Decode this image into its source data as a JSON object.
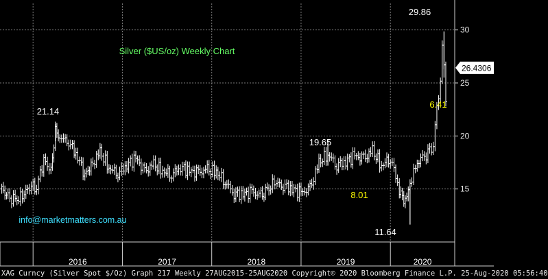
{
  "chart_data": {
    "type": "ohlc",
    "title": "Silver ($US/oz) Weekly Chart",
    "ylim": [
      10,
      32.5
    ],
    "yticks": [
      15,
      20,
      25,
      30
    ],
    "xticks": [
      "2016",
      "2017",
      "2018",
      "2019",
      "2020"
    ],
    "grid": true,
    "last_price": "26.4306",
    "annotations": [
      {
        "text": "21.14",
        "x": 2016.25,
        "y": 21.14,
        "color": "#ffffff"
      },
      {
        "text": "19.65",
        "x": 2019.3,
        "y": 19.65,
        "color": "#ffffff"
      },
      {
        "text": "8.01",
        "x": 2019.6,
        "y": 15.7,
        "color": "#ffff00"
      },
      {
        "text": "11.64",
        "x": 2020.22,
        "y": 11.64,
        "color": "#ffffff"
      },
      {
        "text": "29.86",
        "x": 2020.6,
        "y": 29.86,
        "color": "#ffffff"
      },
      {
        "text": "6.41",
        "x": 2020.62,
        "y": 23.1,
        "color": "#ffff00"
      }
    ],
    "watermark": "info@marketmatters.com.au",
    "series": [
      {
        "x": [
          2015.65,
          2015.72,
          2015.8,
          2015.88,
          2015.96,
          2016.04,
          2016.12,
          2016.2,
          2016.25,
          2016.3,
          2016.4,
          2016.5,
          2016.58,
          2016.65,
          2016.75,
          2016.85,
          2016.95,
          2017.05,
          2017.15,
          2017.25,
          2017.35,
          2017.45,
          2017.55,
          2017.65,
          2017.75,
          2017.85,
          2017.95,
          2018.05,
          2018.15,
          2018.25,
          2018.35,
          2018.45,
          2018.55,
          2018.62,
          2018.7,
          2018.8,
          2018.9,
          2019.0,
          2019.1,
          2019.2,
          2019.3,
          2019.4,
          2019.5,
          2019.6,
          2019.7,
          2019.8,
          2019.9,
          2020.0,
          2020.1,
          2020.15,
          2020.2,
          2020.22,
          2020.26,
          2020.32,
          2020.4,
          2020.48,
          2020.52,
          2020.56,
          2020.58,
          2020.6,
          2020.62,
          2020.64
        ],
        "y": [
          15.0,
          14.2,
          13.9,
          14.3,
          15.3,
          15.2,
          17.8,
          16.6,
          20.6,
          19.9,
          19.5,
          18.0,
          16.4,
          17.1,
          18.5,
          17.0,
          16.5,
          17.3,
          17.9,
          16.6,
          17.3,
          16.7,
          16.4,
          17.1,
          16.7,
          16.5,
          16.8,
          16.6,
          15.7,
          14.6,
          14.5,
          14.7,
          14.3,
          14.8,
          15.6,
          15.4,
          15.0,
          14.6,
          15.0,
          17.5,
          18.3,
          17.3,
          17.6,
          18.1,
          17.8,
          18.6,
          17.2,
          18.0,
          15.0,
          13.7,
          14.5,
          15.0,
          16.8,
          17.8,
          18.3,
          19.2,
          22.5,
          24.6,
          28.3,
          27.0,
          23.8,
          26.43
        ]
      }
    ]
  },
  "footer": "XAG Curncy (Silver Spot  $/Oz) Graph 217  Weekly 27AUG2015-25AUG2020 Copyright© 2020 Bloomberg Finance L.P. 25-Aug-2020 05:56:40",
  "colors": {
    "background": "#000000",
    "bars": "#ffffff",
    "title": "#66ff66",
    "watermark": "#3fe0ff",
    "price_tag": "#ffffff",
    "grid": "#7a7a7a"
  }
}
